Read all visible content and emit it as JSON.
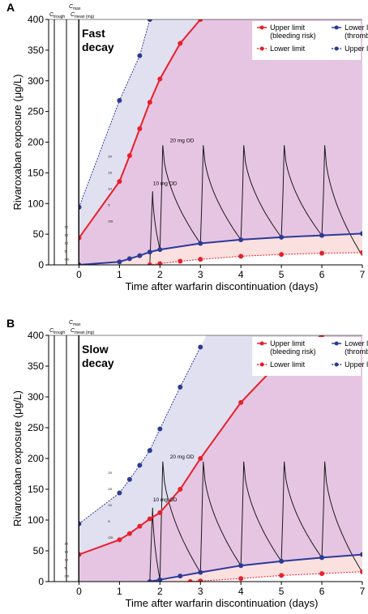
{
  "chart_data": [
    {
      "type": "line",
      "panel": "A",
      "panel_title": "Fast decay",
      "xlabel": "Time after warfarin discontinuation (days)",
      "ylabel": "Rivaroxaban exposure (μg/L)",
      "xlim": [
        -0.75,
        7
      ],
      "ylim": [
        0,
        400
      ],
      "x_ticks": [
        0,
        1,
        2,
        3,
        4,
        5,
        6,
        7
      ],
      "y_ticks": [
        0,
        50,
        100,
        150,
        200,
        250,
        300,
        350,
        400
      ],
      "legend": {
        "position": "top-right",
        "entries": [
          "Upper limit (bleeding risk)",
          "Lower limit (thrombosis risk)",
          "Lower limit",
          "Upper limit"
        ]
      },
      "header": {
        "c_max": "C",
        "c_max_sub": "max",
        "c_trough": "C",
        "c_trough_sub": "trough",
        "c_mean": "C",
        "c_mean_sub": "mean (mg)"
      },
      "annotations": {
        "dose_10": "10 mg OD",
        "dose_20": "20 mg OD"
      },
      "side_scale": [
        "20",
        "15",
        "10",
        "5",
        "OD"
      ],
      "series": [
        {
          "name": "Upper limit (bleeding risk)",
          "color": "#e8202a",
          "marker": "circle",
          "x": [
            0,
            1,
            1.25,
            1.5,
            1.75,
            2,
            2.5,
            3
          ],
          "y": [
            44,
            136,
            178,
            222,
            265,
            303,
            361,
            400
          ]
        },
        {
          "name": "Lower limit (thrombosis risk)",
          "color": "#2b3a98",
          "marker": "circle",
          "x": [
            0,
            1,
            1.25,
            1.5,
            1.75,
            2,
            3,
            4,
            5,
            6,
            7
          ],
          "y": [
            0,
            5,
            10,
            15,
            21,
            25,
            35,
            41,
            45,
            48,
            51
          ]
        },
        {
          "name": "Lower limit",
          "color": "#e8202a",
          "marker": "circle",
          "style": "dashed",
          "x": [
            1.75,
            2,
            2.5,
            3,
            4,
            5,
            6,
            7
          ],
          "y": [
            0,
            2,
            6,
            9,
            14,
            17,
            19,
            20
          ]
        },
        {
          "name": "Upper limit",
          "color": "#2b3a98",
          "marker": "circle",
          "style": "dashed",
          "x": [
            0,
            1,
            1.5,
            1.75
          ],
          "y": [
            94,
            268,
            341,
            400
          ]
        }
      ],
      "dosing": {
        "first_dose_day": 1.75,
        "first_peak": 120,
        "daily_peak": 195,
        "trough_start": 5
      }
    },
    {
      "type": "line",
      "panel": "B",
      "panel_title": "Slow decay",
      "xlabel": "Time after warfarin discontinuation (days)",
      "ylabel": "Rivaroxaban exposure (μg/L)",
      "xlim": [
        -0.75,
        7
      ],
      "ylim": [
        0,
        400
      ],
      "x_ticks": [
        0,
        1,
        2,
        3,
        4,
        5,
        6,
        7
      ],
      "y_ticks": [
        0,
        50,
        100,
        150,
        200,
        250,
        300,
        350,
        400
      ],
      "legend": {
        "position": "top-right",
        "entries": [
          "Upper limit (bleeding risk)",
          "Lower limit (thrombosis risk)",
          "Lower limit",
          "Upper limit"
        ]
      },
      "header": {
        "c_max": "C",
        "c_max_sub": "max",
        "c_trough": "C",
        "c_trough_sub": "trough",
        "c_mean": "C",
        "c_mean_sub": "mean (mg)"
      },
      "annotations": {
        "dose_10": "10 mg OD",
        "dose_20": "20 mg OD"
      },
      "side_scale": [
        "20",
        "15",
        "10",
        "5",
        "OD"
      ],
      "series": [
        {
          "name": "Upper limit (bleeding risk)",
          "color": "#e8202a",
          "marker": "circle",
          "x": [
            0,
            1,
            1.25,
            1.5,
            1.75,
            2,
            2.5,
            3,
            4,
            5,
            6
          ],
          "y": [
            44,
            68,
            78,
            90,
            102,
            112,
            150,
            200,
            291,
            360,
            400
          ]
        },
        {
          "name": "Lower limit (thrombosis risk)",
          "color": "#2b3a98",
          "marker": "circle",
          "x": [
            1.75,
            2,
            2.5,
            3,
            4,
            5,
            6,
            7
          ],
          "y": [
            0,
            3,
            9,
            15,
            26,
            33,
            39,
            44
          ]
        },
        {
          "name": "Lower limit",
          "color": "#e8202a",
          "marker": "circle",
          "style": "dashed",
          "x": [
            2.75,
            3,
            4,
            5,
            6,
            7
          ],
          "y": [
            0,
            1,
            5,
            10,
            13,
            16
          ]
        },
        {
          "name": "Upper limit",
          "color": "#2b3a98",
          "marker": "circle",
          "style": "dashed",
          "x": [
            0,
            1,
            1.25,
            1.5,
            1.75,
            2,
            2.5,
            3
          ],
          "y": [
            94,
            144,
            166,
            189,
            213,
            248,
            316,
            381
          ]
        }
      ],
      "dosing": {
        "first_dose_day": 1.75,
        "first_peak": 120,
        "daily_peak": 195,
        "trough_start": 5
      }
    }
  ]
}
